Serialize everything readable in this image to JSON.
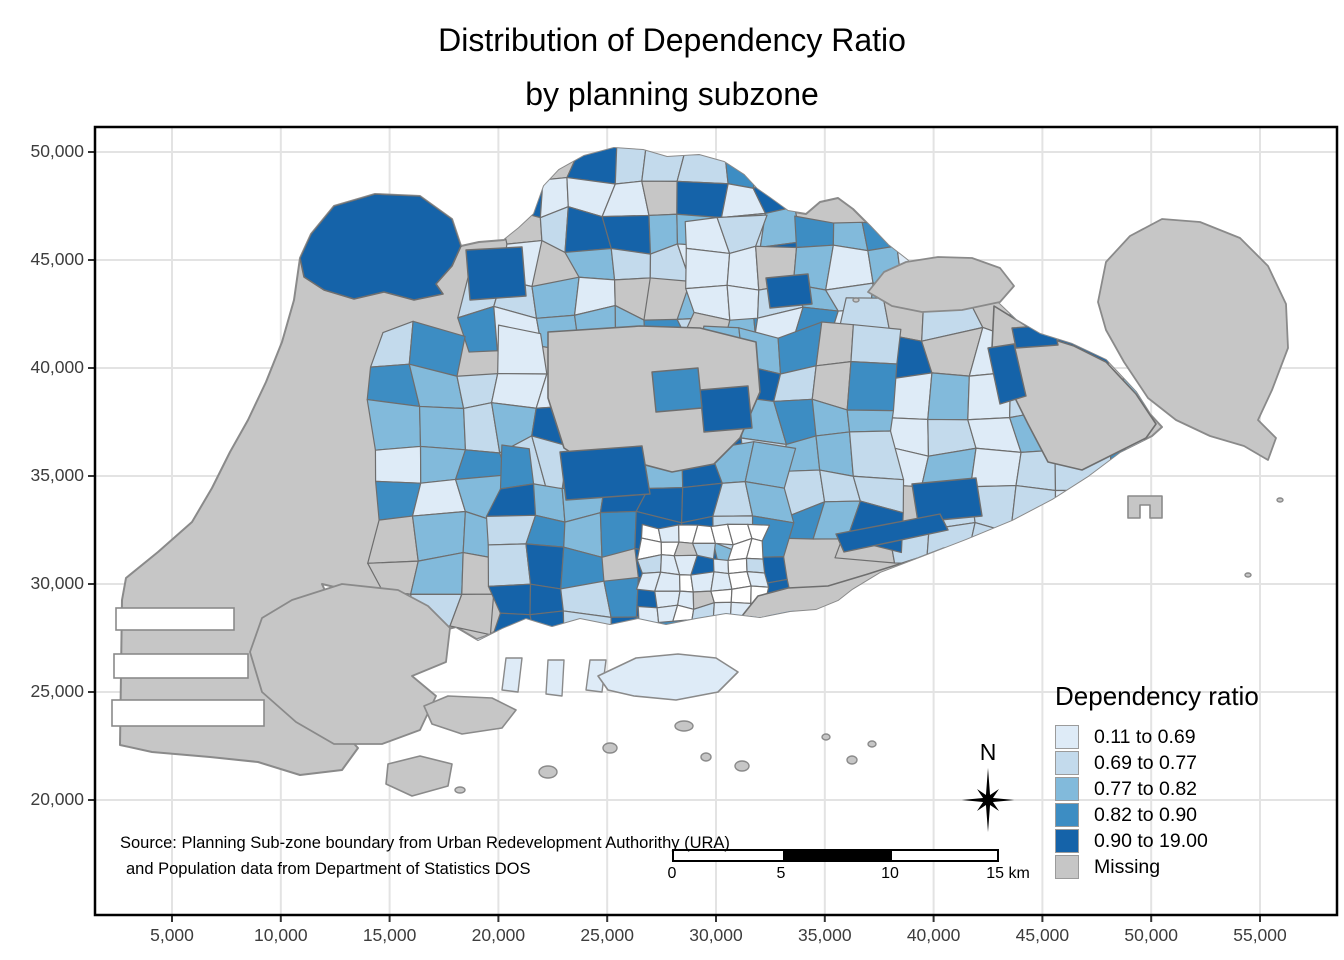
{
  "title": {
    "line1": "Distribution of Dependency Ratio",
    "line2": "by planning subzone"
  },
  "axes": {
    "x_ticks": [
      "5,000",
      "10,000",
      "15,000",
      "20,000",
      "25,000",
      "30,000",
      "35,000",
      "40,000",
      "45,000",
      "50,000",
      "55,000"
    ],
    "y_ticks": [
      "50,000",
      "45,000",
      "40,000",
      "35,000",
      "30,000",
      "25,000",
      "20,000"
    ]
  },
  "legend": {
    "title": "Dependency ratio",
    "items": [
      {
        "label": "0.11 to 0.69",
        "color": "#DEEBF7"
      },
      {
        "label": "0.69 to 0.77",
        "color": "#C3DAEC"
      },
      {
        "label": "0.77 to 0.82",
        "color": "#82BADB"
      },
      {
        "label": "0.82 to 0.90",
        "color": "#3D8DC3"
      },
      {
        "label": "0.90 to 19.00",
        "color": "#1563A9"
      },
      {
        "label": "Missing",
        "color": "#C6C6C6"
      }
    ]
  },
  "map": {
    "sea_color": "#FFFFFF",
    "land_missing_color": "#C6C6C6",
    "subzone_border_color": "#6E6E6E",
    "coastline_color": "#8A8A8A",
    "gridline_color": "#E3E3E3",
    "panel_border_color": "#000000",
    "downtown_fill": "#FFFFFF"
  },
  "north_arrow": {
    "label": "N"
  },
  "scale_bar": {
    "labels": [
      "0",
      "5",
      "10",
      "15 km"
    ]
  },
  "source": {
    "line1": "Source: Planning Sub-zone boundary from Urban Redevelopment Authorithy (URA)",
    "line2": "and Population data from Department of Statistics DOS"
  }
}
